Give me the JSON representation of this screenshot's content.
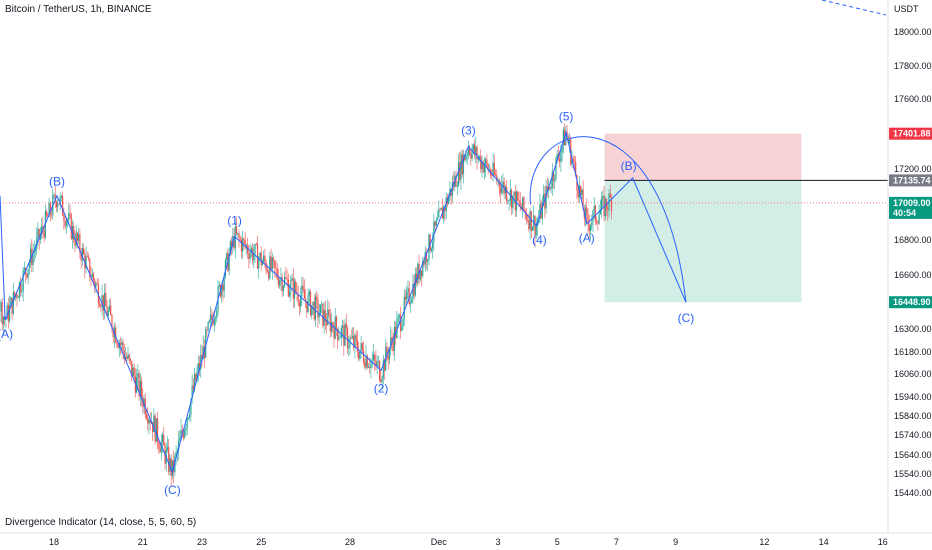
{
  "header": {
    "title": "Bitcoin / TetherUS, 1h, BINANCE"
  },
  "indicator": {
    "label": "Divergence Indicator (14, close, 5, 5, 60, 5)"
  },
  "colors": {
    "up": "#26a69a",
    "down": "#ef5350",
    "wave": "#2962ff",
    "stop_zone": "#f8d3d5",
    "target_zone": "#d2eee7",
    "stop_tag": "#f23645",
    "entry_tag": "#787b86",
    "current_tag": "#089981",
    "target_tag": "#089981"
  },
  "chart_data": {
    "type": "candlestick",
    "title": "Bitcoin / TetherUS, 1h, BINANCE",
    "y_axis": {
      "currency": "USDT",
      "ticks": [
        18000.0,
        17800.0,
        17600.0,
        17200.0,
        16800.0,
        16600.0,
        16300.0,
        16180.0,
        16060.0,
        15940.0,
        15840.0,
        15740.0,
        15640.0,
        15540.0,
        15440.0
      ],
      "tick_labels": [
        "18000.00",
        "17800.00",
        "17600.00",
        "17200.00",
        "16800.00",
        "16600.00",
        "16300.00",
        "16180.00",
        "16060.00",
        "15940.00",
        "15840.00",
        "15740.00",
        "15640.00",
        "15540.00",
        "15440.00"
      ]
    },
    "x_axis": {
      "tick_labels": [
        "18",
        "21",
        "23",
        "25",
        "28",
        "Dec",
        "3",
        "5",
        "7",
        "9",
        "12",
        "14",
        "16"
      ],
      "tick_days": [
        18,
        21,
        23,
        25,
        28,
        31,
        33,
        35,
        37,
        39,
        42,
        44,
        46
      ]
    },
    "price_tags": {
      "stop": "17401.88",
      "entry": "17135.74",
      "current": "17009.00",
      "countdown": "40:54",
      "target": "16448.90"
    },
    "current_price": 17009.0,
    "wave_labels": [
      "(A)",
      "(B)",
      "(C)",
      "(1)",
      "(2)",
      "(3)",
      "(4)",
      "(5)",
      "(A)",
      "(B)",
      "(C)"
    ],
    "wave_points": [
      {
        "label": "(A)",
        "day": 16.35,
        "price": 16350
      },
      {
        "label": "(B)",
        "day": 18.1,
        "price": 17050
      },
      {
        "label": "(C)",
        "day": 22.0,
        "price": 15550
      },
      {
        "label": "(1)",
        "day": 24.1,
        "price": 16820
      },
      {
        "label": "(2)",
        "day": 29.05,
        "price": 16080
      },
      {
        "label": "(3)",
        "day": 32.0,
        "price": 17330
      },
      {
        "label": "(4)",
        "day": 34.3,
        "price": 16880
      },
      {
        "label": "(5)",
        "day": 35.3,
        "price": 17410
      },
      {
        "label": "(A)",
        "day": 36.0,
        "price": 16890
      },
      {
        "label": "(B)",
        "day": 37.55,
        "price": 17150
      },
      {
        "label": "(C)",
        "day": 39.35,
        "price": 16448.9
      }
    ],
    "position": {
      "start_day": 36.6,
      "end_day": 43.25,
      "stop": 17401.88,
      "entry": 17135.74,
      "target": 16448.9
    }
  }
}
